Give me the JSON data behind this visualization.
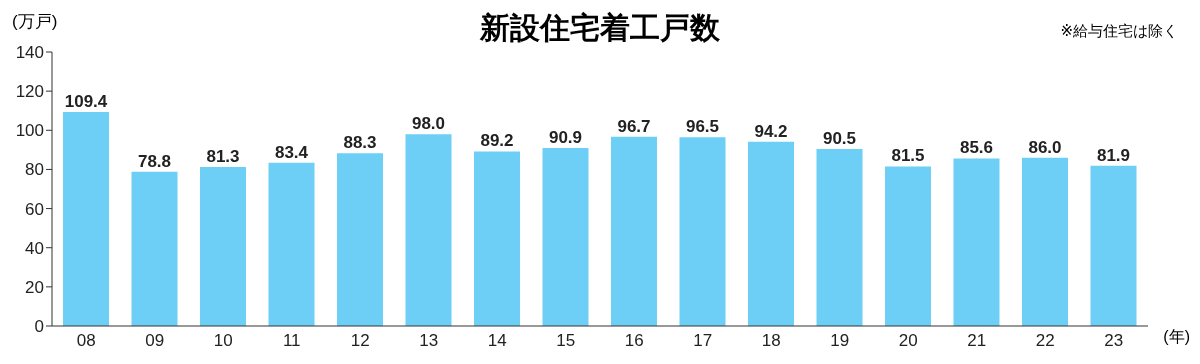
{
  "chart_data": {
    "type": "bar",
    "title": "新設住宅着工戸数",
    "ylabel": "(万戸)",
    "xlabel": "(年)",
    "annotations": [
      "※給与住宅は除く"
    ],
    "categories": [
      "08",
      "09",
      "10",
      "11",
      "12",
      "13",
      "14",
      "15",
      "16",
      "17",
      "18",
      "19",
      "20",
      "21",
      "22",
      "23"
    ],
    "values": [
      109.4,
      78.8,
      81.3,
      83.4,
      88.3,
      98.0,
      89.2,
      90.9,
      96.7,
      96.5,
      94.2,
      90.5,
      81.5,
      85.6,
      86.0,
      81.9
    ],
    "value_labels": [
      "109.4",
      "78.8",
      "81.3",
      "83.4",
      "88.3",
      "98.0",
      "89.2",
      "90.9",
      "96.7",
      "96.5",
      "94.2",
      "90.5",
      "81.5",
      "85.6",
      "86.0",
      "81.9"
    ],
    "color": "#6dcff6",
    "ylim": [
      0,
      140
    ],
    "yticks": [
      0,
      20,
      40,
      60,
      80,
      100,
      120,
      140
    ],
    "grid": false,
    "legend": false
  }
}
